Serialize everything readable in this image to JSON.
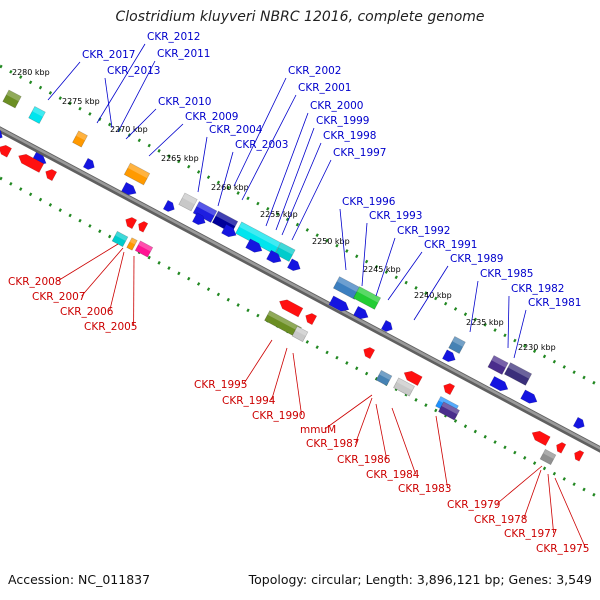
{
  "title": "Clostridium kluyveri NBRC 12016, complete genome",
  "footer": {
    "accession": "Accession: NC_011837",
    "topology": "Topology: circular; Length: 3,896,121 bp; Genes: 3,549"
  },
  "colors": {
    "forward_label": "#0000cc",
    "reverse_label": "#cc0000",
    "tick": "#228822",
    "backbone": "#808080"
  },
  "scale_labels": [
    "2280 kbp",
    "2275 kbp",
    "2270 kbp",
    "2265 kbp",
    "2260 kbp",
    "2255 kbp",
    "2250 kbp",
    "2245 kbp",
    "2240 kbp",
    "2235 kbp",
    "2230 kbp"
  ],
  "forward_genes": [
    "CKR_2017",
    "CKR_2012",
    "CKR_2013",
    "CKR_2011",
    "CKR_2010",
    "CKR_2009",
    "CKR_2004",
    "CKR_2003",
    "CKR_2002",
    "CKR_2001",
    "CKR_2000",
    "CKR_1999",
    "CKR_1998",
    "CKR_1997",
    "CKR_1996",
    "CKR_1993",
    "CKR_1992",
    "CKR_1991",
    "CKR_1989",
    "CKR_1985",
    "CKR_1982",
    "CKR_1981"
  ],
  "reverse_genes": [
    "CKR_2008",
    "CKR_2007",
    "CKR_2006",
    "CKR_2005",
    "CKR_1995",
    "CKR_1994",
    "CKR_1990",
    "mmuM",
    "CKR_1987",
    "CKR_1986",
    "CKR_1984",
    "CKR_1983",
    "CKR_1979",
    "CKR_1978",
    "CKR_1977",
    "CKR_1975"
  ]
}
